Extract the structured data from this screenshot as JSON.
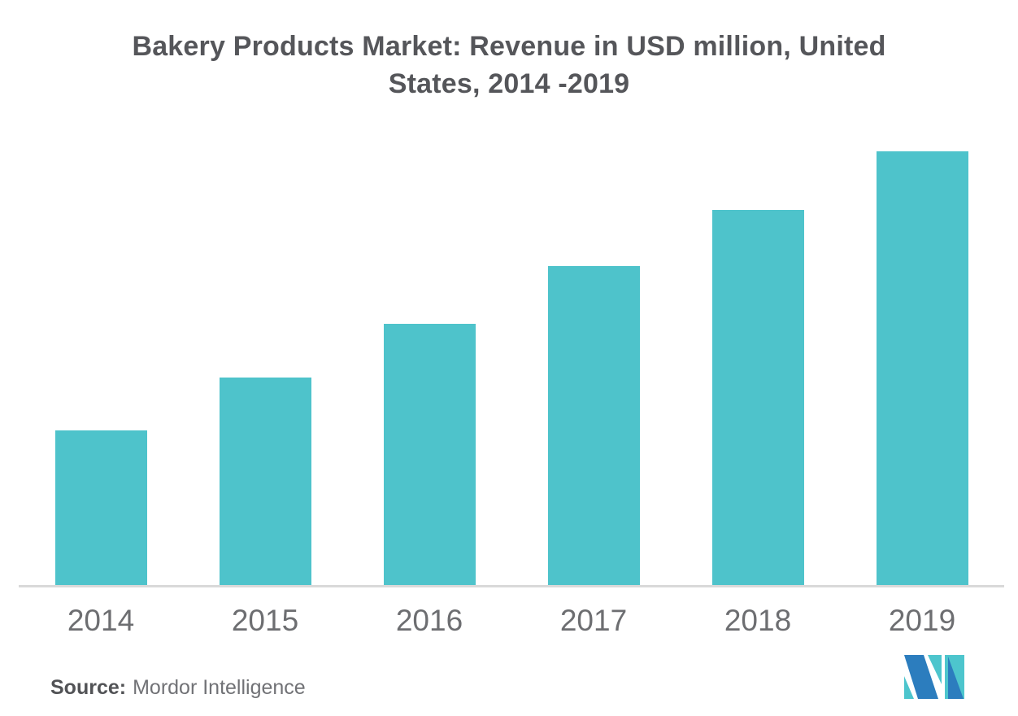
{
  "title": {
    "line1": "Bakery Products Market: Revenue in USD million, United",
    "line2": "States, 2014 -2019"
  },
  "source": {
    "label": "Source:",
    "text": "Mordor Intelligence"
  },
  "logo": {
    "name": "mordor-intelligence-logo",
    "teal": "#4DC5CD",
    "blue": "#2C7DBE"
  },
  "colors": {
    "background": "#FFFFFF",
    "bar": "#4EC3CB",
    "title_text": "#55565A",
    "tick_text": "#6D6E71",
    "axis_line": "#D9D9D9",
    "source_label_text": "#525356",
    "source_text": "#717276"
  },
  "chart_data": {
    "type": "bar",
    "title": "Bakery Products Market: Revenue in USD million, United States, 2014 -2019",
    "categories": [
      "2014",
      "2015",
      "2016",
      "2017",
      "2018",
      "2019"
    ],
    "values": [
      190,
      255,
      321,
      392,
      461,
      533
    ],
    "xlabel": "",
    "ylabel": "",
    "ylim": [
      0,
      569
    ],
    "y_axis_visible": false,
    "grid": false,
    "legend": false,
    "bar_color": "#4EC3CB"
  }
}
